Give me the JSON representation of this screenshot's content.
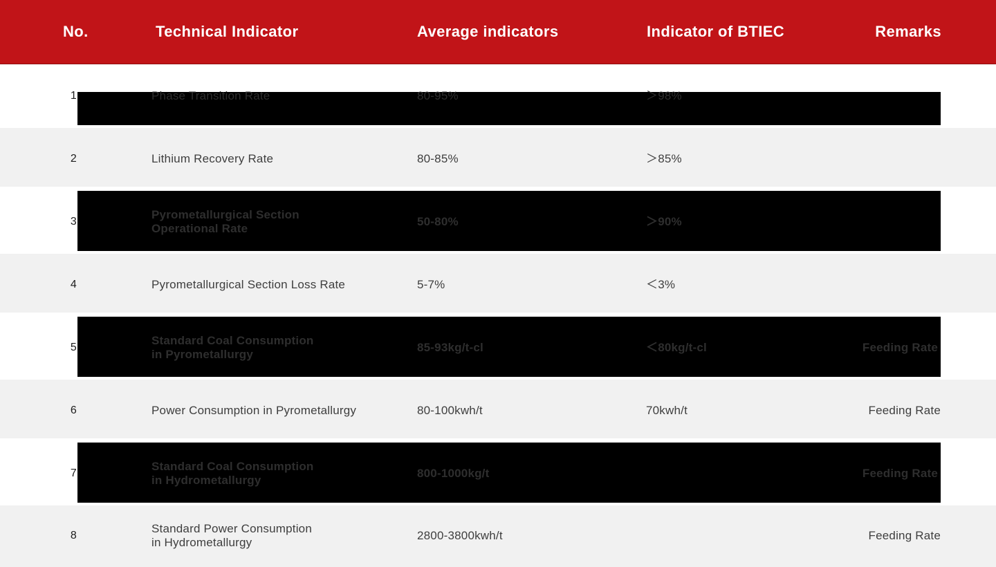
{
  "header": {
    "no": "No.",
    "technical_indicator": "Technical Indicator",
    "average": "Average indicators",
    "btiec": "Indicator of BTIEC",
    "remarks": "Remarks"
  },
  "rows": [
    {
      "no": "1",
      "indicator": "Phase Transition Rate",
      "average": "80-95%",
      "btiec": "＞98%",
      "remarks": ""
    },
    {
      "no": "2",
      "indicator": "Lithium Recovery Rate",
      "average": "80-85%",
      "btiec": "＞85%",
      "remarks": ""
    },
    {
      "no": "3",
      "indicator": "Pyrometallurgical Section\nOperational Rate",
      "average": "50-80%",
      "btiec": "＞90%",
      "remarks": ""
    },
    {
      "no": "4",
      "indicator": "Pyrometallurgical Section Loss Rate",
      "average": "5-7%",
      "btiec": "＜3%",
      "remarks": ""
    },
    {
      "no": "5",
      "indicator": "Standard Coal Consumption\nin Pyrometallurgy",
      "average": "85-93kg/t-cl",
      "btiec": "＜80kg/t-cl",
      "remarks": "Feeding Rate"
    },
    {
      "no": "6",
      "indicator": "Power Consumption in Pyrometallurgy",
      "average": "80-100kwh/t",
      "btiec": "70kwh/t",
      "remarks": "Feeding Rate"
    },
    {
      "no": "7",
      "indicator": "Standard Coal Consumption\nin Hydrometallurgy",
      "average": "800-1000kg/t",
      "btiec": "",
      "remarks": "Feeding Rate"
    },
    {
      "no": "8",
      "indicator": "Standard Power Consumption\nin Hydrometallurgy",
      "average": "2800-3800kwh/t",
      "btiec": "",
      "remarks": "Feeding Rate"
    }
  ],
  "colors": {
    "header_bg": "#c11418",
    "header_text": "#ffffff",
    "alt_row_bg": "#f1f1f1",
    "highlight_bar": "#000000",
    "dark_row_text": "#2e2e2e",
    "light_row_text": "#3e3e3e"
  }
}
